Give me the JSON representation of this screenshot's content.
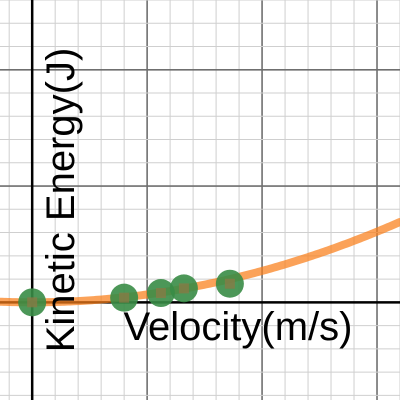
{
  "chart_data": {
    "type": "scatter",
    "title": "",
    "xlabel": "Velocity(m/s)",
    "ylabel": "Kinetic Energy(J)",
    "xlim": [
      -0.7,
      8
    ],
    "ylim": [
      -2.1,
      6.5
    ],
    "grid": true,
    "point_color": "#388c46",
    "curve_color": "#fa7e19",
    "points": [
      {
        "x": 0,
        "y": 0
      },
      {
        "x": 2,
        "y": 0.1
      },
      {
        "x": 2.8,
        "y": 0.2
      },
      {
        "x": 3.3,
        "y": 0.3
      },
      {
        "x": 4.3,
        "y": 0.4
      }
    ],
    "fit_curve": {
      "kind": "quadratic",
      "a": 0.027,
      "b": 0,
      "c": 0
    }
  }
}
